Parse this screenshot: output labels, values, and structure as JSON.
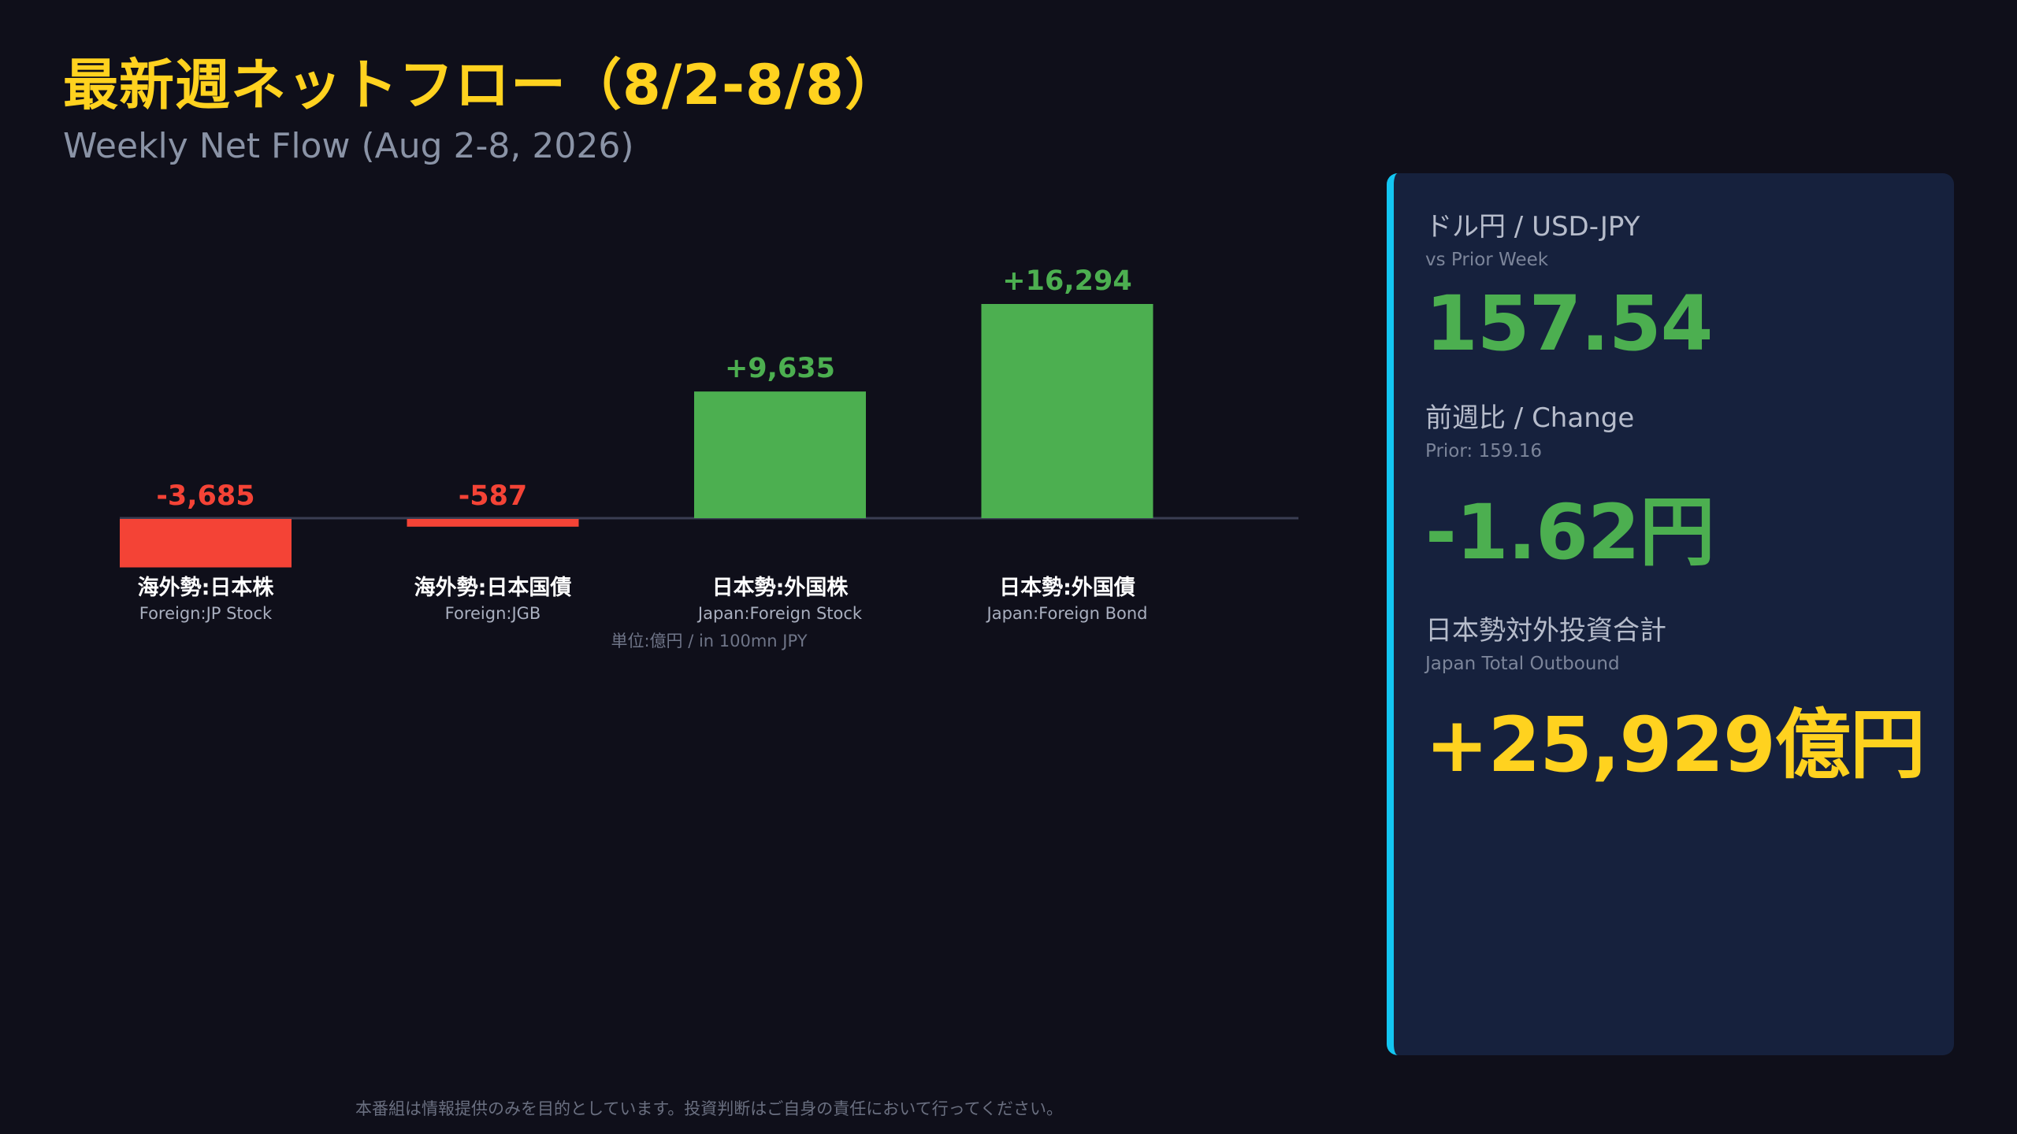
{
  "header": {
    "title": "最新週ネットフロー（8/2-8/8）",
    "subtitle": "Weekly Net Flow (Aug 2-8, 2026)"
  },
  "chart_data": {
    "type": "bar",
    "categories": [
      "海外勢:日本株",
      "海外勢:日本国債",
      "日本勢:外国株",
      "日本勢:外国債"
    ],
    "categories_en": [
      "Foreign:JP Stock",
      "Foreign:JGB",
      "Japan:Foreign Stock",
      "Japan:Foreign Bond"
    ],
    "values": [
      -3685,
      -587,
      9635,
      16294
    ],
    "value_labels": [
      "-3,685",
      "-587",
      "+9,635",
      "+16,294"
    ],
    "unit_label": "単位:億円 / in 100mn JPY",
    "colors": {
      "positive": "#4caf50",
      "negative": "#f44336"
    }
  },
  "panel": {
    "fx": {
      "label": "ドル円 / USD-JPY",
      "sub": "vs Prior Week",
      "value": "157.54"
    },
    "change": {
      "label": "前週比 / Change",
      "sub": "Prior: 159.16",
      "value": "-1.62円"
    },
    "outbound": {
      "label": "日本勢対外投資合計",
      "sub": "Japan Total Outbound",
      "value": "+25,929億円"
    }
  },
  "footer": {
    "disclaimer": "本番組は情報提供のみを目的としています。投資判断はご自身の責任において行ってください。"
  },
  "colors": {
    "background": "#0f0f1a",
    "title": "#ffd21f",
    "accent": "#13c6f2",
    "panel": "#16213d"
  }
}
